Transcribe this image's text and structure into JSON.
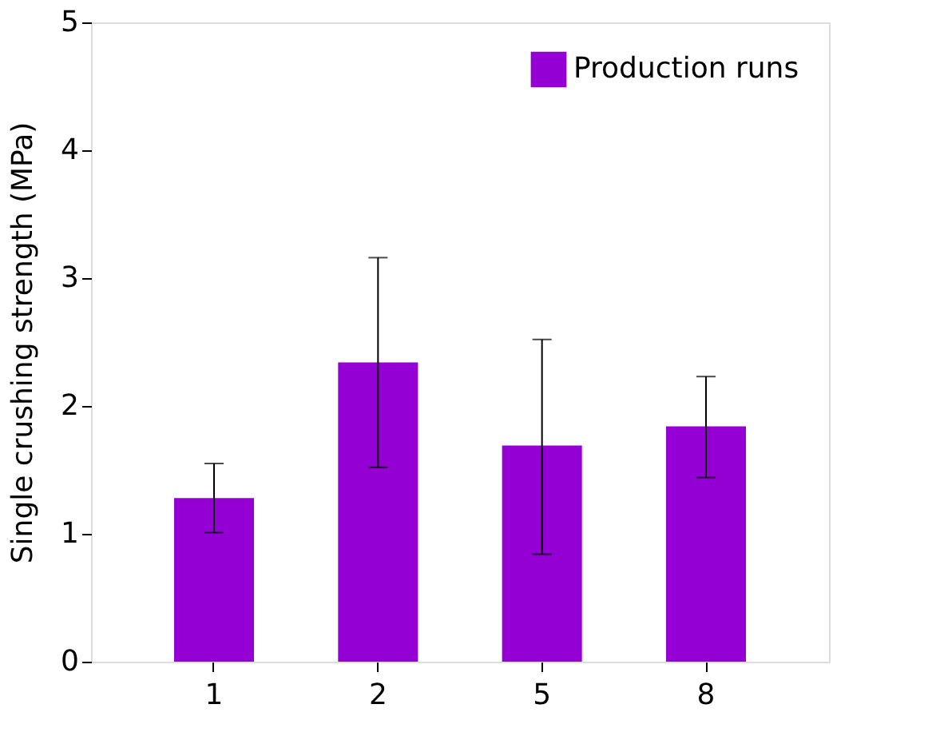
{
  "chart_data": {
    "type": "bar",
    "ylabel": "Single crushing strength (MPa)",
    "categories": [
      "1",
      "2",
      "5",
      "8"
    ],
    "series": [
      {
        "name": "Production runs",
        "color": "#9400d3",
        "values": [
          1.28,
          2.34,
          1.69,
          1.84
        ],
        "errors": [
          [
            1.01,
            1.55
          ],
          [
            1.52,
            3.16
          ],
          [
            0.84,
            2.52
          ],
          [
            1.44,
            2.23
          ]
        ]
      }
    ],
    "ylim": [
      0,
      5
    ],
    "yticks": [
      0,
      1,
      2,
      3,
      4,
      5
    ],
    "grid": false,
    "legend": "top right"
  }
}
